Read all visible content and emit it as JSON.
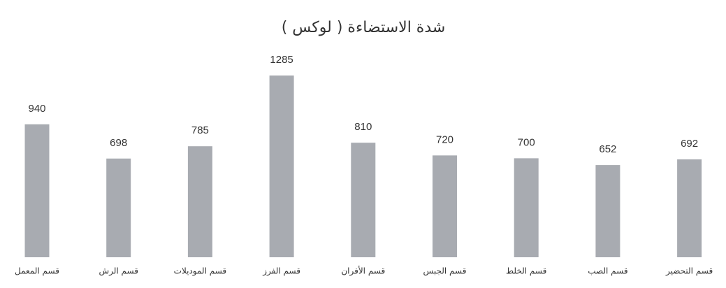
{
  "chart_data": {
    "type": "bar",
    "title": "شدة الاستضاءة ( لوكس )",
    "categories": [
      "قسم المعمل",
      "قسم الرش",
      "قسم الموديلات",
      "قسم الفرز",
      "قسم الأفران",
      "قسم الجبس",
      "قسم الخلط",
      "قسم الصب",
      "قسم التحضير"
    ],
    "values": [
      940,
      698,
      785,
      1285,
      810,
      720,
      700,
      652,
      692
    ],
    "color": "#a8abb1"
  }
}
